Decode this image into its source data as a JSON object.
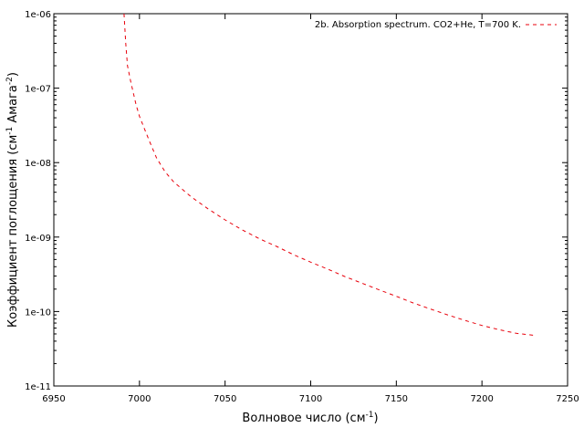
{
  "chart_data": {
    "type": "line",
    "title": "",
    "xlabel": {
      "base": "Волновое число (см",
      "sup": "-1",
      "tail": ")"
    },
    "ylabel": {
      "base": "Коэффициент поглощения (см",
      "sup1": "-1",
      "mid": " Амага",
      "sup2": "-2",
      "tail": ")"
    },
    "xlim": [
      6950,
      7250
    ],
    "ylim": [
      1e-11,
      1e-06
    ],
    "yscale": "log",
    "grid": false,
    "legend_position": "top-right",
    "x_ticks": [
      6950,
      7000,
      7050,
      7100,
      7150,
      7200,
      7250
    ],
    "x_tick_labels": [
      "6950",
      "7000",
      "7050",
      "7100",
      "7150",
      "7200",
      "7250"
    ],
    "y_ticks": [
      1e-11,
      1e-10,
      1e-09,
      1e-08,
      1e-07,
      1e-06
    ],
    "y_tick_labels": [
      "1e-11",
      "1e-10",
      "1e-09",
      "1e-08",
      "1e-07",
      "1e-06"
    ],
    "series": [
      {
        "name": "2b. Absorption spectrum. CO2+He, T=700 K.",
        "color": "#e8000b",
        "dash": "dashed",
        "x": [
          6991,
          6992,
          6993,
          6995,
          6998,
          7000,
          7003,
          7006,
          7010,
          7015,
          7020,
          7030,
          7040,
          7050,
          7060,
          7070,
          7080,
          7090,
          7100,
          7110,
          7120,
          7130,
          7140,
          7150,
          7160,
          7170,
          7180,
          7190,
          7200,
          7210,
          7220,
          7230
        ],
        "y": [
          1e-06,
          4e-07,
          2e-07,
          1.2e-07,
          6e-08,
          4.2e-08,
          2.8e-08,
          1.9e-08,
          1.15e-08,
          7.5e-09,
          5.5e-09,
          3.5e-09,
          2.4e-09,
          1.7e-09,
          1.25e-09,
          9.5e-10,
          7.5e-10,
          5.8e-10,
          4.6e-10,
          3.7e-10,
          2.95e-10,
          2.4e-10,
          1.95e-10,
          1.6e-10,
          1.3e-10,
          1.08e-10,
          9e-11,
          7.6e-11,
          6.5e-11,
          5.7e-11,
          5.1e-11,
          4.8e-11
        ]
      }
    ]
  }
}
